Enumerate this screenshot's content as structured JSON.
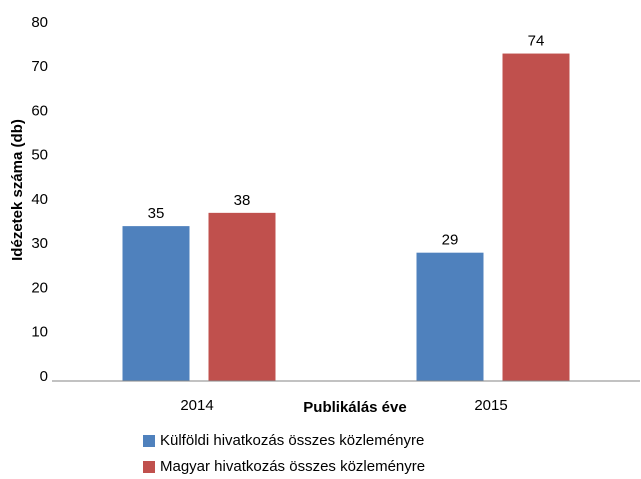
{
  "chart_data": {
    "type": "bar",
    "categories": [
      "2014",
      "2015"
    ],
    "series": [
      {
        "name": "Külföldi hivatkozás összes közleményre",
        "color": "#4f81bd",
        "values": [
          35,
          29
        ]
      },
      {
        "name": "Magyar hivatkozás összes közleményre",
        "color": "#c0504d",
        "values": [
          38,
          74
        ]
      }
    ],
    "x_label": "Publikálás éve",
    "y_label": "Idézetek száma (db)",
    "ylim": [
      0,
      80
    ],
    "yticks": [
      0,
      10,
      20,
      30,
      40,
      50,
      60,
      70,
      80
    ],
    "grid": false,
    "legend": "bottom"
  }
}
